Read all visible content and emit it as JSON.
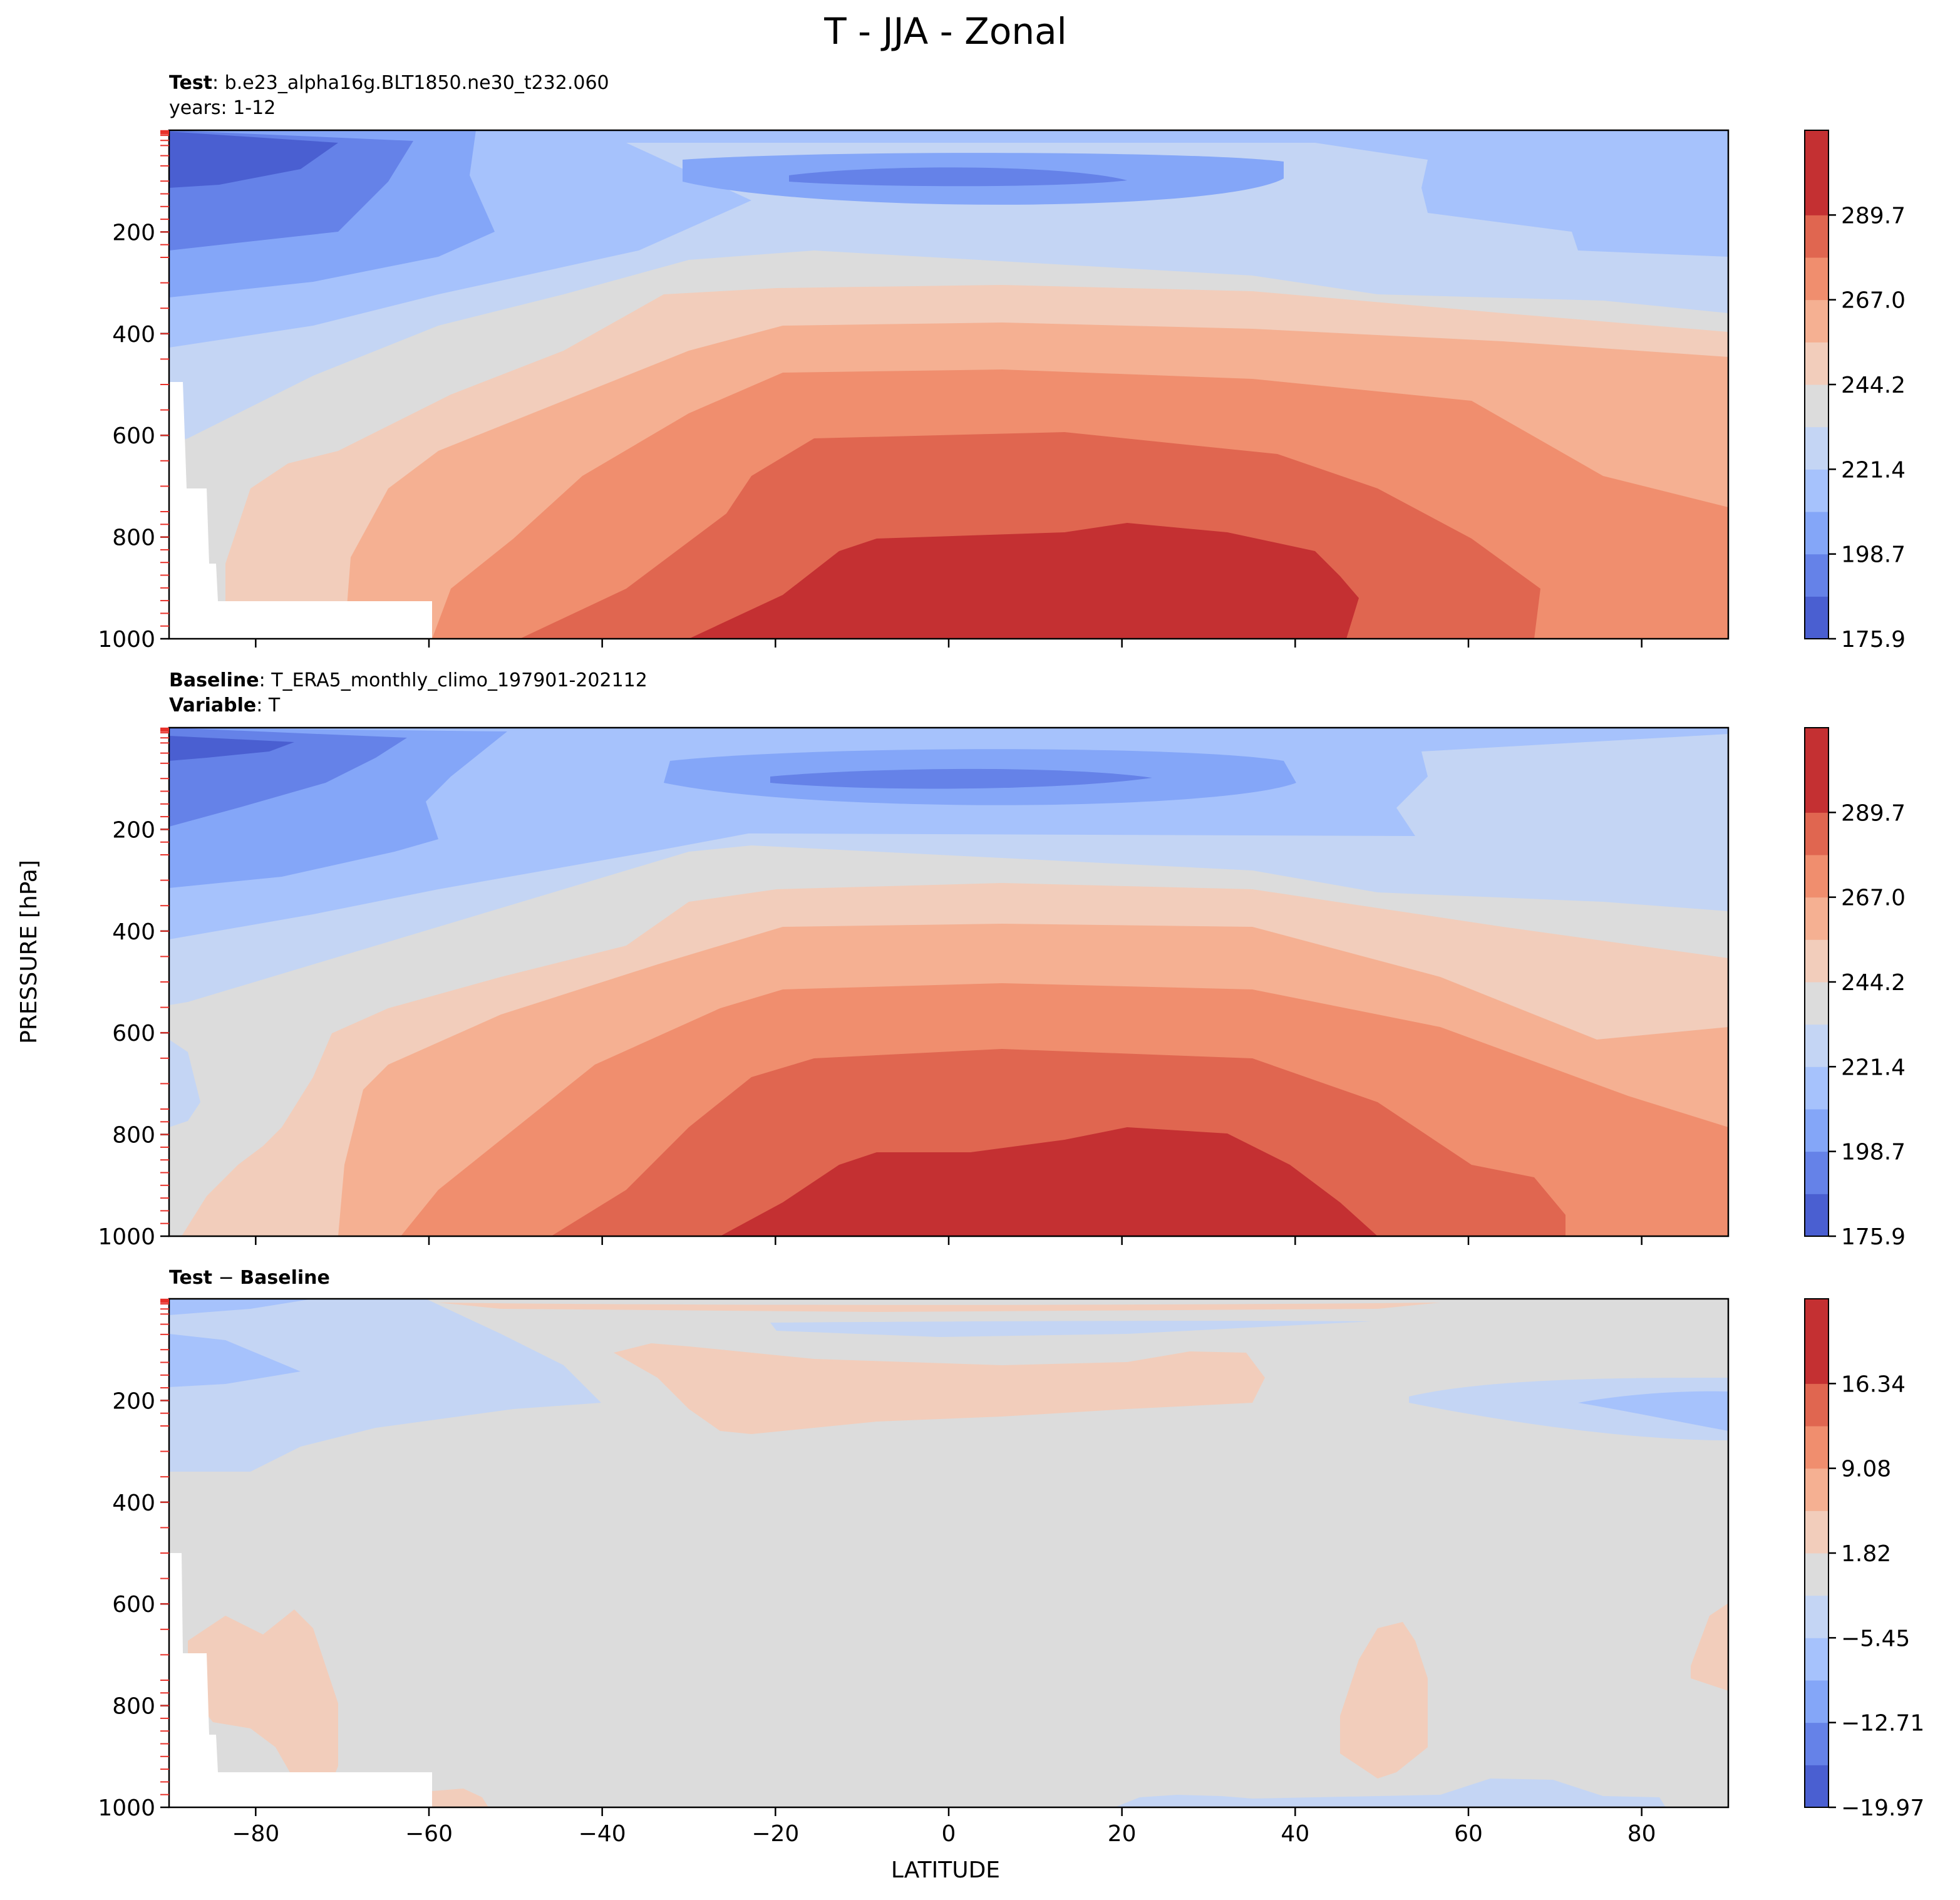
{
  "figure_title": "T - JJA - Zonal",
  "shared_ylabel": "PRESSURE [hPa]",
  "shared_xlabel": "LATITUDE",
  "x_ticks": [
    -80,
    -60,
    -40,
    -20,
    0,
    20,
    40,
    60,
    80
  ],
  "x_tick_labels": [
    "−80",
    "−60",
    "−40",
    "−20",
    "0",
    "20",
    "40",
    "60",
    "80"
  ],
  "y_ticks": [
    200,
    400,
    600,
    800,
    1000
  ],
  "y_tick_labels": [
    "200",
    "400",
    "600",
    "800",
    "1000"
  ],
  "colors": {
    "c1": "#4a5fd1",
    "c2": "#6582e8",
    "c3": "#84a6f8",
    "c4": "#a6c2fc",
    "c5": "#c4d5f4",
    "c6": "#dcdcdc",
    "c7": "#f2cdbb",
    "c8": "#f5b092",
    "c9": "#f08e6e",
    "c10": "#e06650",
    "c11": "#c43032",
    "tick_red": "#e8312a"
  },
  "panels": {
    "test": {
      "header_bold": "Test",
      "header_text": ": b.e23_alpha16g.BLT1850.ne30_t232.060",
      "subheader": "years: 1-12",
      "colorbar_ticks": [
        "289.7",
        "267.0",
        "244.2",
        "221.4",
        "198.7",
        "175.9"
      ]
    },
    "baseline": {
      "header_bold": "Baseline",
      "header_text": ": T_ERA5_monthly_climo_197901-202112",
      "subheader_bold": "Variable",
      "subheader_text": ": T",
      "colorbar_ticks": [
        "289.7",
        "267.0",
        "244.2",
        "221.4",
        "198.7",
        "175.9"
      ]
    },
    "diff": {
      "header_bold_1": "Test",
      "header_minus": " − ",
      "header_bold_2": "Baseline",
      "colorbar_ticks": [
        "16.34",
        "9.08",
        "1.82",
        "−5.45",
        "−12.71",
        "−19.97"
      ]
    }
  },
  "chart_data": [
    {
      "type": "heatmap",
      "title": "Test : b.e23_alpha16g.BLT1850.ne30_t232.060 (years: 1-12)",
      "xlabel": "LATITUDE",
      "ylabel": "PRESSURE [hPa]",
      "xlim": [
        -90,
        90
      ],
      "ylim": [
        1000,
        0
      ],
      "colorbar_ticks": [
        175.9,
        198.7,
        221.4,
        244.2,
        267.0,
        289.7
      ],
      "contour_levels_approx": [
        175.9,
        187.3,
        198.7,
        210.0,
        221.4,
        232.8,
        244.2,
        255.6,
        267.0,
        278.3,
        289.7,
        301.1
      ],
      "features": [
        {
          "desc": "max temperature near surface",
          "lat": 20,
          "pressure": 1000,
          "value_range": [
            289.7,
            301.1
          ]
        },
        {
          "desc": "cold polar stratosphere",
          "lat": -85,
          "pressure": 50,
          "value_range": [
            175.9,
            187.3
          ]
        },
        {
          "desc": "cold tropical tropopause",
          "lat": 5,
          "pressure": 90,
          "value_range": [
            187.3,
            198.7
          ]
        }
      ]
    },
    {
      "type": "heatmap",
      "title": "Baseline : T_ERA5_monthly_climo_197901-202112 (Variable : T)",
      "xlabel": "LATITUDE",
      "ylabel": "PRESSURE [hPa]",
      "xlim": [
        -90,
        90
      ],
      "ylim": [
        1000,
        0
      ],
      "colorbar_ticks": [
        175.9,
        198.7,
        221.4,
        244.2,
        267.0,
        289.7
      ],
      "contour_levels_approx": [
        175.9,
        187.3,
        198.7,
        210.0,
        221.4,
        232.8,
        244.2,
        255.6,
        267.0,
        278.3,
        289.7,
        301.1
      ],
      "features": [
        {
          "desc": "max temperature near surface",
          "lat": 20,
          "pressure": 1000,
          "value_range": [
            289.7,
            301.1
          ]
        },
        {
          "desc": "cold polar stratosphere",
          "lat": -85,
          "pressure": 30,
          "value_range": [
            175.9,
            187.3
          ]
        },
        {
          "desc": "cold tropical tropopause",
          "lat": 5,
          "pressure": 100,
          "value_range": [
            187.3,
            198.7
          ]
        }
      ]
    },
    {
      "type": "heatmap",
      "title": "Test − Baseline",
      "xlabel": "LATITUDE",
      "ylabel": "PRESSURE [hPa]",
      "xlim": [
        -90,
        90
      ],
      "ylim": [
        1000,
        0
      ],
      "colorbar_ticks": [
        -19.97,
        -12.71,
        -5.45,
        1.82,
        9.08,
        16.34
      ],
      "contour_levels_approx": [
        -19.97,
        -16.34,
        -12.71,
        -9.08,
        -5.45,
        -1.82,
        1.82,
        5.45,
        9.08,
        12.71,
        16.34,
        19.97
      ],
      "features": [
        {
          "desc": "warm bias upper tropical troposphere",
          "lat_range": [
            -35,
            35
          ],
          "pressure_range": [
            80,
            260
          ],
          "value_range": [
            1.82,
            5.45
          ]
        },
        {
          "desc": "cold bias high-latitude southern upper troposphere",
          "lat_range": [
            -90,
            -45
          ],
          "pressure_range": [
            0,
            350
          ],
          "value_range": [
            -9.08,
            -1.82
          ]
        },
        {
          "desc": "cold bias northern upper troposphere",
          "lat_range": [
            55,
            90
          ],
          "pressure_range": [
            180,
            260
          ],
          "value_range": [
            -9.08,
            -5.45
          ]
        }
      ]
    }
  ]
}
